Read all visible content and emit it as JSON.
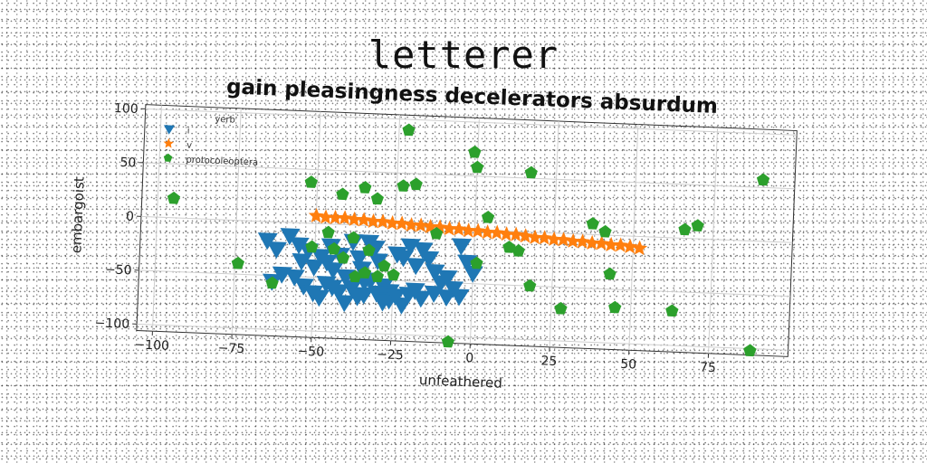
{
  "figure": {
    "suptitle": "letterer"
  },
  "colors": {
    "i": "#1f77b4",
    "v": "#ff7f0e",
    "protocoleoptera": "#2ca02c",
    "grid": "#cfcfcf",
    "axes": "#333333"
  },
  "chart_data": {
    "type": "scatter",
    "title": "gain pleasingness decelerators absurdum",
    "xlabel": "unfeathered",
    "ylabel": "embargoist",
    "xlim": [
      -105,
      100
    ],
    "ylim": [
      -106,
      104
    ],
    "xticks": [
      -100,
      -75,
      -50,
      -25,
      0,
      25,
      50,
      75
    ],
    "yticks": [
      -100,
      -50,
      0,
      50,
      100
    ],
    "grid": true,
    "legend": {
      "placement": "top-left",
      "title": "yerb"
    },
    "series": [
      {
        "name": "i",
        "marker": "triangle-down",
        "points": [
          [
            -65,
            -17
          ],
          [
            -62,
            -25
          ],
          [
            -58,
            -12
          ],
          [
            -55,
            -20
          ],
          [
            -54,
            -35
          ],
          [
            -52,
            -25
          ],
          [
            -50,
            -40
          ],
          [
            -48,
            -30
          ],
          [
            -46,
            -35
          ],
          [
            -45,
            -20
          ],
          [
            -44,
            -42
          ],
          [
            -42,
            -28
          ],
          [
            -40,
            -48
          ],
          [
            -38,
            -15
          ],
          [
            -36,
            -30
          ],
          [
            -35,
            -40
          ],
          [
            -34,
            -52
          ],
          [
            -33,
            -15
          ],
          [
            -31,
            -20
          ],
          [
            -30,
            -32
          ],
          [
            -28,
            -55
          ],
          [
            -26,
            -60
          ],
          [
            -24,
            -25
          ],
          [
            -22,
            -28
          ],
          [
            -20,
            -17
          ],
          [
            -18,
            -35
          ],
          [
            -16,
            -20
          ],
          [
            -14,
            -28
          ],
          [
            -12,
            -40
          ],
          [
            -10,
            -50
          ],
          [
            -8,
            -45
          ],
          [
            -6,
            -55
          ],
          [
            -4,
            -15
          ],
          [
            -2,
            -30
          ],
          [
            0,
            -40
          ],
          [
            -56,
            -50
          ],
          [
            -53,
            -58
          ],
          [
            -50,
            -64
          ],
          [
            -46,
            -55
          ],
          [
            -42,
            -62
          ],
          [
            -38,
            -58
          ],
          [
            -34,
            -64
          ],
          [
            -30,
            -62
          ],
          [
            -26,
            -68
          ],
          [
            -22,
            -72
          ],
          [
            -18,
            -58
          ],
          [
            -60,
            -48
          ],
          [
            -63,
            -55
          ],
          [
            -16,
            -65
          ],
          [
            -12,
            -60
          ],
          [
            -8,
            -63
          ],
          [
            -4,
            -62
          ],
          [
            -48,
            -68
          ],
          [
            -40,
            -72
          ],
          [
            -36,
            -66
          ],
          [
            -28,
            -70
          ],
          [
            -32,
            -50
          ],
          [
            -24,
            -64
          ],
          [
            -20,
            -62
          ],
          [
            -44,
            -58
          ]
        ]
      },
      {
        "name": "v",
        "marker": "star",
        "points": [
          [
            -50,
            7
          ],
          [
            -47,
            6
          ],
          [
            -44,
            6
          ],
          [
            -41,
            6
          ],
          [
            -38,
            5
          ],
          [
            -35,
            5
          ],
          [
            -32,
            4
          ],
          [
            -29,
            4
          ],
          [
            -26,
            3
          ],
          [
            -23,
            3
          ],
          [
            -20,
            2
          ],
          [
            -17,
            2
          ],
          [
            -14,
            1
          ],
          [
            -11,
            1
          ],
          [
            -8,
            0
          ],
          [
            -5,
            0
          ],
          [
            -2,
            -1
          ],
          [
            1,
            -1
          ],
          [
            4,
            -2
          ],
          [
            7,
            -2
          ],
          [
            10,
            -3
          ],
          [
            13,
            -3
          ],
          [
            16,
            -4
          ],
          [
            19,
            -5
          ],
          [
            22,
            -5
          ],
          [
            25,
            -6
          ],
          [
            28,
            -6
          ],
          [
            31,
            -7
          ],
          [
            34,
            -7
          ],
          [
            37,
            -8
          ],
          [
            40,
            -8
          ],
          [
            43,
            -9
          ],
          [
            46,
            -9
          ],
          [
            49,
            -10
          ],
          [
            52,
            -11
          ]
        ]
      },
      {
        "name": "protocoleoptera",
        "marker": "pentagon",
        "points": [
          [
            -95,
            18
          ],
          [
            -74,
            -40
          ],
          [
            -63,
            -57
          ],
          [
            -52,
            38
          ],
          [
            -51,
            -22
          ],
          [
            -46,
            -8
          ],
          [
            -44,
            -23
          ],
          [
            -42,
            28
          ],
          [
            -41,
            -31
          ],
          [
            -38,
            -12
          ],
          [
            -37,
            -48
          ],
          [
            -35,
            35
          ],
          [
            -34,
            -44
          ],
          [
            -33,
            -23
          ],
          [
            -31,
            25
          ],
          [
            -30,
            -47
          ],
          [
            -28,
            -37
          ],
          [
            -25,
            -45
          ],
          [
            -23,
            38
          ],
          [
            -22,
            90
          ],
          [
            -19,
            40
          ],
          [
            -12,
            -5
          ],
          [
            -7,
            -105
          ],
          [
            -1,
            72
          ],
          [
            0,
            58
          ],
          [
            1,
            -31
          ],
          [
            4,
            12
          ],
          [
            11,
            -15
          ],
          [
            14,
            -18
          ],
          [
            17,
            55
          ],
          [
            18,
            -50
          ],
          [
            28,
            -70
          ],
          [
            37,
            10
          ],
          [
            41,
            3
          ],
          [
            43,
            -36
          ],
          [
            45,
            -67
          ],
          [
            63,
            -68
          ],
          [
            66,
            8
          ],
          [
            70,
            12
          ],
          [
            88,
            -102
          ],
          [
            90,
            57
          ]
        ]
      }
    ]
  }
}
